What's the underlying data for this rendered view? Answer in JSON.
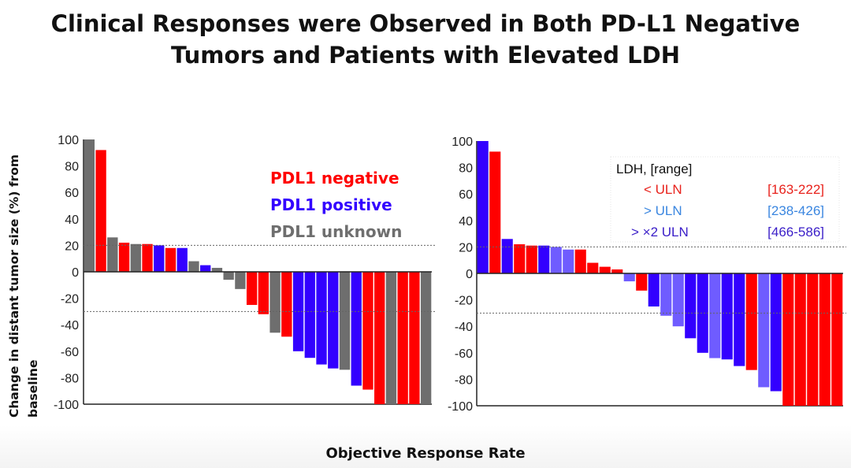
{
  "title_line1": "Clinical Responses were Observed in Both PD-L1 Negative",
  "title_line2": "Tumors and Patients with Elevated LDH",
  "ylabel": "Change in distant tumor size (%) from baseline",
  "xlabel": "Objective Response Rate",
  "chart_data": [
    {
      "type": "bar",
      "ylim": [
        -100,
        100
      ],
      "yticks": [
        "100",
        "80",
        "60",
        "40",
        "20",
        "0",
        "-20",
        "-40",
        "-60",
        "-80",
        "-100"
      ],
      "reference_lines": [
        20,
        -30
      ],
      "legend_placement": "top-right",
      "legend": [
        {
          "label": "PDL1 negative",
          "key": "neg",
          "color": "#ff0000"
        },
        {
          "label": "PDL1 positive",
          "key": "pos",
          "color": "#3300ff"
        },
        {
          "label": "PDL1 unknown",
          "key": "unk",
          "color": "#6e6e6e"
        }
      ],
      "values": [
        100,
        92,
        26,
        22,
        21,
        21,
        20,
        18,
        18,
        8,
        5,
        3,
        -6,
        -13,
        -25,
        -32,
        -46,
        -49,
        -60,
        -65,
        -70,
        -73,
        -74,
        -86,
        -89,
        -100,
        -100,
        -100,
        -100,
        -100
      ],
      "groups": [
        "unk",
        "neg",
        "unk",
        "neg",
        "unk",
        "neg",
        "pos",
        "neg",
        "pos",
        "unk",
        "pos",
        "unk",
        "unk",
        "unk",
        "neg",
        "neg",
        "unk",
        "neg",
        "pos",
        "pos",
        "pos",
        "pos",
        "unk",
        "pos",
        "neg",
        "neg",
        "unk",
        "neg",
        "neg",
        "unk"
      ]
    },
    {
      "type": "bar",
      "ylim": [
        -100,
        100
      ],
      "yticks": [
        "100",
        "80",
        "60",
        "40",
        "20",
        "0",
        "-20",
        "-40",
        "-60",
        "-80",
        "-100"
      ],
      "reference_lines": [
        20,
        -30
      ],
      "legend_placement": "top-right",
      "legend_title": "LDH,  [range]",
      "legend": [
        {
          "label": "< ULN",
          "range": "[163-222]",
          "key": "low",
          "color": "#ff0000",
          "text_color": "#e8221c"
        },
        {
          "label": "> ULN",
          "range": "[238-426]",
          "key": "mid",
          "color": "#6f5cff",
          "text_color": "#3a86e0"
        },
        {
          "label": "> ×2 ULN",
          "range": "[466-586]",
          "key": "high",
          "color": "#3300ff",
          "text_color": "#3a1ec8"
        }
      ],
      "values": [
        100,
        92,
        26,
        22,
        21,
        21,
        20,
        18,
        18,
        8,
        5,
        3,
        -6,
        -13,
        -25,
        -32,
        -40,
        -49,
        -60,
        -64,
        -65,
        -70,
        -73,
        -86,
        -89,
        -100,
        -100,
        -100,
        -100,
        -100
      ],
      "groups": [
        "high",
        "low",
        "high",
        "low",
        "low",
        "high",
        "mid",
        "mid",
        "low",
        "low",
        "low",
        "low",
        "mid",
        "low",
        "high",
        "mid",
        "mid",
        "high",
        "high",
        "mid",
        "high",
        "high",
        "low",
        "mid",
        "high",
        "low",
        "low",
        "low",
        "low",
        "low"
      ]
    }
  ]
}
